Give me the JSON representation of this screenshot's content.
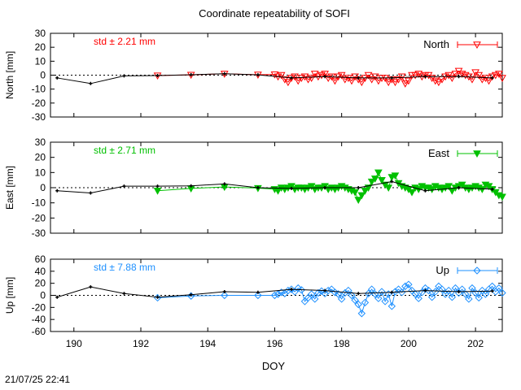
{
  "chart_data": {
    "title": "Coordinate repeatability of SOFI",
    "xlabel": "DOY",
    "xlim": [
      189.3,
      202.8
    ],
    "xticks": [
      190,
      192,
      194,
      196,
      198,
      200,
      202
    ],
    "timestamp": "21/07/25 22:41",
    "panels": [
      {
        "name": "North",
        "type": "line",
        "ylabel": "North [mm]",
        "ylim": [
          -30,
          30
        ],
        "yticks": [
          -30,
          -20,
          -10,
          0,
          10,
          20,
          30
        ],
        "color": "#ff0000",
        "marker": "triangle-down-open",
        "std_label": "std ± 2.21 mm",
        "legend": "North",
        "series": [
          {
            "name": "daily",
            "x": [
              189.5,
              190.5,
              191.5,
              192.5,
              193.5,
              194.5,
              195.5,
              196.5,
              197.5,
              198.5,
              199.5,
              200.5,
              201.5,
              202.5
            ],
            "y": [
              -2,
              -6,
              -0.5,
              -0.3,
              0.3,
              1,
              0.2,
              -2,
              -1,
              -2,
              -2,
              -1,
              -1,
              -2
            ]
          },
          {
            "name": "hourly",
            "x": [
              192.5,
              193.5,
              194.5,
              195.5,
              196.0,
              196.1,
              196.2,
              196.3,
              196.4,
              196.5,
              196.6,
              196.7,
              196.8,
              196.9,
              197.0,
              197.1,
              197.2,
              197.3,
              197.4,
              197.5,
              197.6,
              197.7,
              197.8,
              197.9,
              198.0,
              198.1,
              198.2,
              198.3,
              198.4,
              198.5,
              198.6,
              198.7,
              198.8,
              198.9,
              199.0,
              199.1,
              199.2,
              199.3,
              199.4,
              199.5,
              199.6,
              199.7,
              199.8,
              199.9,
              200.0,
              200.1,
              200.2,
              200.3,
              200.4,
              200.5,
              200.6,
              200.7,
              200.8,
              200.9,
              201.0,
              201.1,
              201.2,
              201.3,
              201.4,
              201.5,
              201.6,
              201.7,
              201.8,
              201.9,
              202.0,
              202.1,
              202.2,
              202.3,
              202.4,
              202.5,
              202.6,
              202.7,
              202.8
            ],
            "y": [
              -0.3,
              0.2,
              1,
              0.3,
              0.5,
              -1,
              0,
              -3,
              -5,
              -2,
              -1,
              -4,
              -2,
              -1,
              -3,
              -2,
              1,
              -1,
              0,
              1,
              -2,
              -1,
              -4,
              -1,
              0,
              -3,
              -2,
              -4,
              -1,
              -3,
              -5,
              -2,
              0,
              -3,
              -1,
              -4,
              -2,
              -2,
              -5,
              -3,
              -5,
              -3,
              -1,
              -6,
              -4,
              0,
              0,
              1,
              -1,
              0,
              0,
              -2,
              -4,
              -5,
              -3,
              -1,
              0,
              -2,
              1,
              3,
              1,
              0,
              -1,
              -3,
              2,
              0,
              -3,
              -2,
              -4,
              -1,
              0,
              1,
              -2
            ]
          }
        ]
      },
      {
        "name": "East",
        "type": "line",
        "ylabel": "East [mm]",
        "ylim": [
          -30,
          30
        ],
        "yticks": [
          -30,
          -20,
          -10,
          0,
          10,
          20,
          30
        ],
        "color": "#00c000",
        "marker": "triangle-down-filled",
        "std_label": "std ± 2.71 mm",
        "legend": "East",
        "series": [
          {
            "name": "daily",
            "x": [
              189.5,
              190.5,
              191.5,
              192.5,
              193.5,
              194.5,
              195.5,
              196.5,
              197.5,
              198.5,
              199.5,
              200.5,
              201.5,
              202.5
            ],
            "y": [
              -2,
              -3.5,
              1,
              1,
              1.2,
              2.5,
              0,
              -0.5,
              0,
              0,
              4,
              -2,
              0,
              -1
            ]
          },
          {
            "name": "hourly",
            "x": [
              192.5,
              193.5,
              194.5,
              195.5,
              196.0,
              196.1,
              196.2,
              196.3,
              196.4,
              196.5,
              196.6,
              196.7,
              196.8,
              196.9,
              197.0,
              197.1,
              197.2,
              197.3,
              197.4,
              197.5,
              197.6,
              197.7,
              197.8,
              197.9,
              198.0,
              198.1,
              198.2,
              198.3,
              198.4,
              198.5,
              198.6,
              198.7,
              198.8,
              198.9,
              199.0,
              199.1,
              199.2,
              199.3,
              199.4,
              199.5,
              199.6,
              199.7,
              199.8,
              199.9,
              200.0,
              200.1,
              200.2,
              200.3,
              200.4,
              200.5,
              200.6,
              200.7,
              200.8,
              200.9,
              201.0,
              201.1,
              201.2,
              201.3,
              201.4,
              201.5,
              201.6,
              201.7,
              201.8,
              201.9,
              202.0,
              202.1,
              202.2,
              202.3,
              202.4,
              202.5,
              202.6,
              202.7,
              202.8
            ],
            "y": [
              -2,
              -0.5,
              0.5,
              -0.3,
              -1,
              -2,
              0,
              -1,
              0,
              1,
              -1,
              0,
              0,
              -1,
              0,
              1,
              -1,
              0,
              0,
              1,
              -1,
              0,
              -1,
              0,
              1,
              0,
              -1,
              -2,
              -3,
              -8,
              -5,
              -2,
              0,
              4,
              6,
              10,
              5,
              2,
              0,
              7,
              8,
              3,
              1,
              0,
              -1,
              -3,
              0,
              -1,
              1,
              0,
              0,
              -1,
              1,
              0,
              -1,
              0,
              1,
              -2,
              0,
              1,
              2,
              0,
              -1,
              0,
              1,
              0,
              -1,
              2,
              1,
              -1,
              -3,
              -5,
              -6
            ]
          }
        ]
      },
      {
        "name": "Up",
        "type": "line",
        "ylabel": "Up [mm]",
        "ylim": [
          -60,
          60
        ],
        "yticks": [
          -60,
          -40,
          -20,
          0,
          20,
          40,
          60
        ],
        "color": "#1e90ff",
        "marker": "diamond-open",
        "std_label": "std ± 7.88 mm",
        "legend": "Up",
        "series": [
          {
            "name": "daily",
            "x": [
              189.5,
              190.5,
              191.5,
              192.5,
              193.5,
              194.5,
              195.5,
              196.5,
              197.5,
              198.5,
              199.5,
              200.5,
              201.5,
              202.5
            ],
            "y": [
              -3,
              14,
              3,
              -3,
              1,
              6,
              5,
              10,
              8,
              3,
              5,
              8,
              6,
              7
            ]
          },
          {
            "name": "hourly",
            "x": [
              192.5,
              193.5,
              194.5,
              195.5,
              196.0,
              196.1,
              196.2,
              196.3,
              196.4,
              196.5,
              196.6,
              196.7,
              196.8,
              196.9,
              197.0,
              197.1,
              197.2,
              197.3,
              197.4,
              197.5,
              197.6,
              197.7,
              197.8,
              197.9,
              198.0,
              198.1,
              198.2,
              198.3,
              198.4,
              198.5,
              198.6,
              198.7,
              198.8,
              198.9,
              199.0,
              199.1,
              199.2,
              199.3,
              199.4,
              199.5,
              199.6,
              199.7,
              199.8,
              199.9,
              200.0,
              200.1,
              200.2,
              200.3,
              200.4,
              200.5,
              200.6,
              200.7,
              200.8,
              200.9,
              201.0,
              201.1,
              201.2,
              201.3,
              201.4,
              201.5,
              201.6,
              201.7,
              201.8,
              201.9,
              202.0,
              202.1,
              202.2,
              202.3,
              202.4,
              202.5,
              202.6,
              202.7,
              202.8
            ],
            "y": [
              -4,
              -1,
              0,
              0,
              0,
              2,
              5,
              3,
              8,
              10,
              6,
              12,
              9,
              -10,
              -4,
              2,
              -6,
              4,
              7,
              3,
              8,
              10,
              5,
              2,
              -6,
              4,
              8,
              0,
              -8,
              -15,
              -30,
              -12,
              3,
              10,
              2,
              -5,
              6,
              -10,
              2,
              -18,
              6,
              10,
              5,
              15,
              18,
              8,
              2,
              -5,
              5,
              12,
              8,
              -3,
              6,
              15,
              10,
              2,
              8,
              -3,
              12,
              4,
              10,
              2,
              -6,
              12,
              4,
              -4,
              8,
              2,
              10,
              15,
              6,
              12,
              4
            ]
          }
        ]
      }
    ]
  }
}
